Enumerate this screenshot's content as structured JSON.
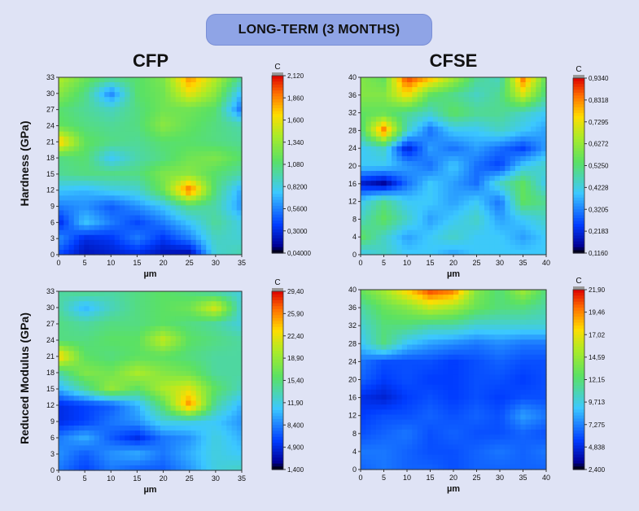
{
  "banner": "LONG-TERM (3 MONTHS)",
  "columns": [
    "CFP",
    "CFSE"
  ],
  "rows": [
    "Hardness  (GPa)",
    "Reduced Modulus  (GPa)"
  ],
  "chart_data": [
    {
      "type": "heatmap",
      "id": "cfp-hardness",
      "xlabel": "µm",
      "xlim": [
        0,
        35
      ],
      "ylim": [
        0,
        33
      ],
      "x_ticks": [
        "0",
        "5",
        "10",
        "15",
        "20",
        "25",
        "30",
        "35"
      ],
      "y_ticks": [
        "0",
        "3",
        "6",
        "9",
        "12",
        "15",
        "18",
        "21",
        "24",
        "27",
        "30",
        "33"
      ],
      "colorbar": {
        "title": "C",
        "ticks": [
          "2,120",
          "1,860",
          "1,600",
          "1,340",
          "1,080",
          "0,8200",
          "0,5600",
          "0,3000",
          "0,04000"
        ],
        "min": 0.04,
        "max": 2.12
      },
      "grid_x": [
        0,
        5,
        10,
        15,
        20,
        25,
        30,
        35
      ],
      "grid_y": [
        0,
        3,
        6,
        9,
        12,
        15,
        18,
        21,
        24,
        27,
        30,
        33
      ],
      "values": [
        [
          1.45,
          1.2,
          1.05,
          1.1,
          1.25,
          1.85,
          1.45,
          1.0
        ],
        [
          1.3,
          1.05,
          0.55,
          1.1,
          1.2,
          1.6,
          1.3,
          0.7
        ],
        [
          1.1,
          1.0,
          0.9,
          1.05,
          1.2,
          1.2,
          1.1,
          0.5
        ],
        [
          1.15,
          1.05,
          1.0,
          1.05,
          1.3,
          1.15,
          1.05,
          0.95
        ],
        [
          1.75,
          1.15,
          1.05,
          1.0,
          1.1,
          1.1,
          1.05,
          1.0
        ],
        [
          1.05,
          1.1,
          0.75,
          0.95,
          1.05,
          1.2,
          1.25,
          1.1
        ],
        [
          1.0,
          1.05,
          1.05,
          1.05,
          1.25,
          1.3,
          1.1,
          0.95
        ],
        [
          0.75,
          0.7,
          0.8,
          0.85,
          1.2,
          1.95,
          1.05,
          0.65
        ],
        [
          0.55,
          0.6,
          0.45,
          0.6,
          0.75,
          1.05,
          0.95,
          0.6
        ],
        [
          0.3,
          0.75,
          0.55,
          0.4,
          0.55,
          0.75,
          1.0,
          0.8
        ],
        [
          0.6,
          0.3,
          0.35,
          0.55,
          0.35,
          0.55,
          0.9,
          0.85
        ],
        [
          0.4,
          0.2,
          0.25,
          0.3,
          0.2,
          0.15,
          0.85,
          0.95
        ]
      ]
    },
    {
      "type": "heatmap",
      "id": "cfse-hardness",
      "xlabel": "µm",
      "xlim": [
        0,
        40
      ],
      "ylim": [
        0,
        40
      ],
      "x_ticks": [
        "0",
        "5",
        "10",
        "15",
        "20",
        "25",
        "30",
        "35",
        "40"
      ],
      "y_ticks": [
        "0",
        "4",
        "8",
        "12",
        "16",
        "20",
        "24",
        "28",
        "32",
        "36",
        "40"
      ],
      "colorbar": {
        "title": "C",
        "ticks": [
          "0,9340",
          "0,8318",
          "0,7295",
          "0,6272",
          "0,5250",
          "0,4228",
          "0,3205",
          "0,2183",
          "0,1160"
        ],
        "min": 0.116,
        "max": 0.934
      },
      "grid_x": [
        0,
        5,
        10,
        15,
        20,
        25,
        30,
        35,
        40
      ],
      "grid_y": [
        0,
        4,
        8,
        12,
        16,
        20,
        24,
        28,
        32,
        36,
        40
      ],
      "values": [
        [
          0.6,
          0.55,
          0.9,
          0.8,
          0.65,
          0.5,
          0.45,
          0.85,
          0.55
        ],
        [
          0.6,
          0.6,
          0.75,
          0.55,
          0.5,
          0.45,
          0.5,
          0.7,
          0.5
        ],
        [
          0.55,
          0.55,
          0.5,
          0.45,
          0.55,
          0.5,
          0.5,
          0.45,
          0.4
        ],
        [
          0.5,
          0.85,
          0.45,
          0.3,
          0.4,
          0.4,
          0.45,
          0.4,
          0.35
        ],
        [
          0.4,
          0.45,
          0.2,
          0.35,
          0.3,
          0.35,
          0.3,
          0.25,
          0.35
        ],
        [
          0.4,
          0.4,
          0.35,
          0.3,
          0.4,
          0.3,
          0.25,
          0.4,
          0.45
        ],
        [
          0.2,
          0.15,
          0.3,
          0.4,
          0.35,
          0.3,
          0.45,
          0.55,
          0.4
        ],
        [
          0.4,
          0.5,
          0.4,
          0.4,
          0.35,
          0.4,
          0.3,
          0.55,
          0.5
        ],
        [
          0.45,
          0.55,
          0.45,
          0.35,
          0.4,
          0.45,
          0.35,
          0.4,
          0.45
        ],
        [
          0.55,
          0.45,
          0.35,
          0.4,
          0.45,
          0.4,
          0.4,
          0.35,
          0.4
        ],
        [
          0.4,
          0.45,
          0.4,
          0.4,
          0.35,
          0.4,
          0.4,
          0.4,
          0.4
        ]
      ]
    },
    {
      "type": "heatmap",
      "id": "cfp-modulus",
      "xlabel": "µm",
      "xlim": [
        0,
        35
      ],
      "ylim": [
        0,
        33
      ],
      "x_ticks": [
        "0",
        "5",
        "10",
        "15",
        "20",
        "25",
        "30",
        "35"
      ],
      "y_ticks": [
        "0",
        "3",
        "6",
        "9",
        "12",
        "15",
        "18",
        "21",
        "24",
        "27",
        "30",
        "33"
      ],
      "colorbar": {
        "title": "C",
        "ticks": [
          "29,40",
          "25,90",
          "22,40",
          "18,90",
          "15,40",
          "11,90",
          "8,400",
          "4,900",
          "1,400"
        ],
        "min": 1.4,
        "max": 29.4
      },
      "grid_x": [
        0,
        5,
        10,
        15,
        20,
        25,
        30,
        35
      ],
      "grid_y": [
        0,
        3,
        6,
        9,
        12,
        15,
        18,
        21,
        24,
        27,
        30,
        33
      ],
      "values": [
        [
          14.0,
          15.0,
          14.0,
          15.0,
          16.0,
          15.0,
          13.0,
          12.0
        ],
        [
          14.0,
          10.0,
          13.0,
          15.0,
          16.0,
          17.0,
          22.0,
          12.0
        ],
        [
          15.0,
          14.0,
          15.0,
          15.0,
          16.0,
          15.0,
          14.0,
          12.0
        ],
        [
          15.0,
          15.0,
          16.0,
          16.0,
          21.0,
          16.0,
          15.0,
          14.0
        ],
        [
          24.0,
          16.0,
          15.0,
          16.0,
          16.0,
          15.0,
          14.0,
          14.0
        ],
        [
          14.0,
          18.0,
          17.0,
          20.0,
          18.0,
          17.0,
          14.0,
          14.0
        ],
        [
          10.0,
          14.0,
          19.0,
          16.0,
          20.0,
          22.0,
          16.0,
          13.0
        ],
        [
          5.0,
          6.0,
          7.0,
          10.0,
          16.0,
          26.0,
          14.0,
          10.0
        ],
        [
          5.0,
          6.0,
          8.0,
          9.0,
          12.0,
          12.0,
          11.0,
          9.0
        ],
        [
          8.0,
          10.0,
          7.0,
          5.0,
          8.0,
          9.0,
          12.0,
          10.0
        ],
        [
          9.0,
          7.0,
          9.0,
          10.0,
          8.0,
          10.0,
          12.0,
          11.0
        ],
        [
          8.0,
          6.0,
          8.0,
          7.0,
          7.0,
          9.0,
          12.0,
          13.0
        ]
      ]
    },
    {
      "type": "heatmap",
      "id": "cfse-modulus",
      "xlabel": "µm",
      "xlim": [
        0,
        40
      ],
      "ylim": [
        0,
        40
      ],
      "x_ticks": [
        "0",
        "5",
        "10",
        "15",
        "20",
        "25",
        "30",
        "35",
        "40"
      ],
      "y_ticks": [
        "0",
        "4",
        "8",
        "12",
        "16",
        "20",
        "24",
        "28",
        "32",
        "36",
        "40"
      ],
      "colorbar": {
        "title": "C",
        "ticks": [
          "21,90",
          "19,46",
          "17,02",
          "14,59",
          "12,15",
          "9,713",
          "7,275",
          "4,838",
          "2,400"
        ],
        "min": 2.4,
        "max": 21.9
      },
      "grid_x": [
        0,
        5,
        10,
        15,
        20,
        25,
        30,
        35,
        40
      ],
      "grid_y": [
        0,
        4,
        8,
        12,
        16,
        20,
        24,
        28,
        32,
        36,
        40
      ],
      "values": [
        [
          13.0,
          15.0,
          18.0,
          21.0,
          20.0,
          14.0,
          12.0,
          15.0,
          12.0
        ],
        [
          11.0,
          13.0,
          14.0,
          16.0,
          15.0,
          13.0,
          12.0,
          12.0,
          11.0
        ],
        [
          10.0,
          12.0,
          12.0,
          11.0,
          11.0,
          10.0,
          10.0,
          10.0,
          10.0
        ],
        [
          9.0,
          12.0,
          9.0,
          8.0,
          7.5,
          7.0,
          7.5,
          7.0,
          7.0
        ],
        [
          7.0,
          6.0,
          6.0,
          6.0,
          5.5,
          6.0,
          6.5,
          6.0,
          6.0
        ],
        [
          6.5,
          5.5,
          6.0,
          5.5,
          5.5,
          6.0,
          6.0,
          5.5,
          6.0
        ],
        [
          5.0,
          4.5,
          5.5,
          6.0,
          5.5,
          6.0,
          5.5,
          6.0,
          6.0
        ],
        [
          5.5,
          6.0,
          6.0,
          6.5,
          6.0,
          6.5,
          6.0,
          8.0,
          7.0
        ],
        [
          6.0,
          6.5,
          7.0,
          6.0,
          6.5,
          6.0,
          6.0,
          6.5,
          6.0
        ],
        [
          7.0,
          7.0,
          6.5,
          6.0,
          6.0,
          6.5,
          7.0,
          6.5,
          7.0
        ],
        [
          6.5,
          7.0,
          6.5,
          6.5,
          6.0,
          6.5,
          6.5,
          6.5,
          6.5
        ]
      ]
    }
  ]
}
